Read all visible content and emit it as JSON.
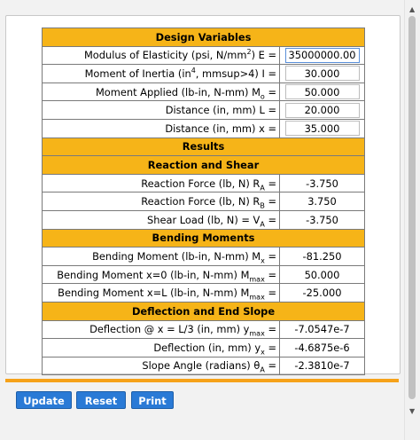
{
  "sections": {
    "design_variables": "Design Variables",
    "results": "Results",
    "reaction_shear": "Reaction and Shear",
    "bending_moments": "Bending Moments",
    "deflection_slope": "Deflection and End Slope"
  },
  "inputs": {
    "modulus": {
      "label_pre": "Modulus of Elasticity (psi, N/mm",
      "label_sup": "2",
      "label_post": ") E =",
      "value": "35000000.00"
    },
    "inertia": {
      "label_pre": "Moment of Inertia (in",
      "label_sup": "4",
      "label_post": ", mmsup>4) I =",
      "value": "30.000"
    },
    "moment": {
      "label_pre": "Moment Applied (lb-in, N-mm) M",
      "label_sub": "o",
      "label_post": " =",
      "value": "50.000"
    },
    "distance_L": {
      "label": "Distance (in, mm) L =",
      "value": "20.000"
    },
    "distance_x": {
      "label": "Distance (in, mm) x =",
      "value": "35.000"
    }
  },
  "reaction_shear": {
    "ra": {
      "label_pre": "Reaction Force (lb, N) R",
      "label_sub": "A",
      "label_post": " =",
      "value": "-3.750"
    },
    "rb": {
      "label_pre": "Reaction Force (lb, N) R",
      "label_sub": "B",
      "label_post": " =",
      "value": "3.750"
    },
    "shear": {
      "label_pre": "Shear Load (lb, N) = V",
      "label_sub": "A",
      "label_post": " =",
      "value": "-3.750"
    }
  },
  "bending_moments": {
    "mx": {
      "label_pre": "Bending Moment (lb-in, N-mm) M",
      "label_sub": "x",
      "label_post": " =",
      "value": "-81.250"
    },
    "m0": {
      "label_pre": "Bending Moment x=0 (lb-in, N-mm) M",
      "label_sub": "max",
      "label_post": " =",
      "value": "50.000"
    },
    "mL": {
      "label_pre": "Bending Moment x=L (lb-in, N-mm) M",
      "label_sub": "max",
      "label_post": " =",
      "value": "-25.000"
    }
  },
  "deflection_slope": {
    "ymax": {
      "label_pre": "Deflection @ x = L/3 (in, mm) y",
      "label_sub": "max",
      "label_post": " =",
      "value": "-7.0547e-7"
    },
    "yx": {
      "label_pre": "Deflection  (in, mm) y",
      "label_sub": "x",
      "label_post": " =",
      "value": "-4.6875e-6"
    },
    "theta": {
      "label_pre": "Slope Angle (radians) θ",
      "label_sub": "A",
      "label_post": " =",
      "value": "-2.3810e-7"
    }
  },
  "buttons": {
    "update": "Update",
    "reset": "Reset",
    "print": "Print"
  },
  "scrollbar": {
    "up": "▲",
    "down": "▼"
  },
  "colors": {
    "header": "#f6b418",
    "button": "#2a7ad6",
    "bar": "#f6a21a"
  }
}
